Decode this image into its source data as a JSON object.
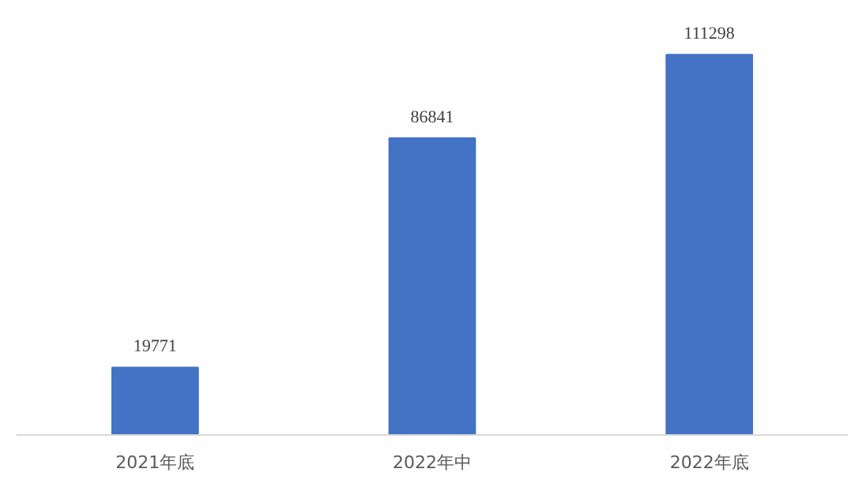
{
  "chart_data": {
    "type": "bar",
    "categories": [
      "2021年底",
      "2022年中",
      "2022年底"
    ],
    "values": [
      19771,
      86841,
      111298
    ],
    "color": "#4472c4",
    "data_labels": true,
    "grid": false
  }
}
